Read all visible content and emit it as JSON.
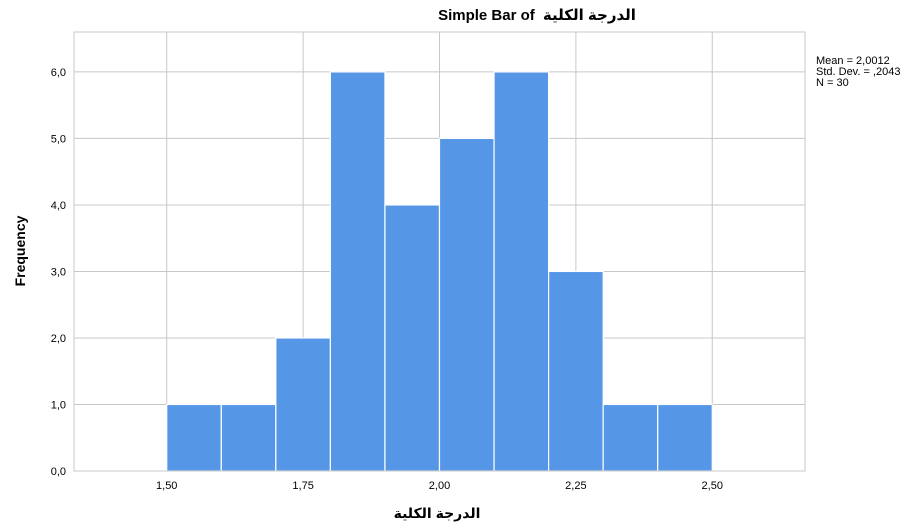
{
  "chart_data": {
    "type": "bar",
    "title": "Simple Bar of الدرجة الكلية",
    "title_parts": {
      "latin": "Simple Bar of",
      "arabic": "الدرجة الكلية"
    },
    "xlabel": "الدرجة الكلية",
    "ylabel": "Frequency",
    "bin_width": 0.1,
    "bins": [
      {
        "start": 1.5,
        "end": 1.6,
        "value": 1
      },
      {
        "start": 1.6,
        "end": 1.7,
        "value": 1
      },
      {
        "start": 1.7,
        "end": 1.8,
        "value": 2
      },
      {
        "start": 1.8,
        "end": 1.9,
        "value": 6
      },
      {
        "start": 1.9,
        "end": 2.0,
        "value": 4
      },
      {
        "start": 2.0,
        "end": 2.1,
        "value": 5
      },
      {
        "start": 2.1,
        "end": 2.2,
        "value": 6
      },
      {
        "start": 2.2,
        "end": 2.3,
        "value": 3
      },
      {
        "start": 2.3,
        "end": 2.4,
        "value": 1
      },
      {
        "start": 2.4,
        "end": 2.5,
        "value": 1
      }
    ],
    "xlim": [
      1.33,
      2.67
    ],
    "ylim": [
      0,
      6.6
    ],
    "x_ticks": [
      1.5,
      1.75,
      2.0,
      2.25,
      2.5
    ],
    "x_tick_labels": [
      "1,50",
      "1,75",
      "2,00",
      "2,25",
      "2,50"
    ],
    "y_ticks": [
      0,
      1,
      2,
      3,
      4,
      5,
      6
    ],
    "y_tick_labels": [
      "0,0",
      "1,0",
      "2,0",
      "3,0",
      "4,0",
      "5,0",
      "6,0"
    ],
    "grid": true,
    "colors": {
      "bar": "#5596e6",
      "bar_edge": "#ffffff",
      "grid": "#c8c8c8"
    },
    "stats": {
      "mean": "Mean = 2,0012",
      "std_dev": "Std. Dev. = ,2043",
      "n": "N = 30"
    }
  }
}
